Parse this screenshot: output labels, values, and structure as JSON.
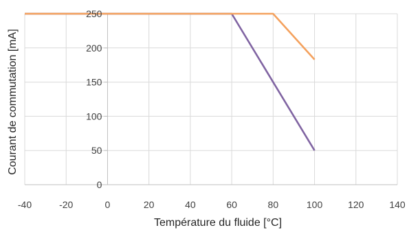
{
  "chart_data": {
    "type": "line",
    "title": "",
    "xlabel": "Température du fluide [°C]",
    "ylabel": "Courant de commutation [mA]",
    "xlim": [
      -40,
      140
    ],
    "ylim": [
      0,
      250
    ],
    "x_ticks": [
      -40,
      -20,
      0,
      20,
      40,
      60,
      80,
      100,
      120,
      140
    ],
    "y_ticks": [
      0,
      50,
      100,
      150,
      200,
      250
    ],
    "grid": true,
    "legend": "none",
    "series": [
      {
        "color": "#f4a15d",
        "points": [
          [
            -40,
            250
          ],
          [
            80,
            250
          ],
          [
            100,
            183
          ]
        ]
      },
      {
        "color": "#8064a2",
        "points": [
          [
            -40,
            250
          ],
          [
            60,
            250
          ],
          [
            100,
            50
          ]
        ]
      }
    ]
  }
}
